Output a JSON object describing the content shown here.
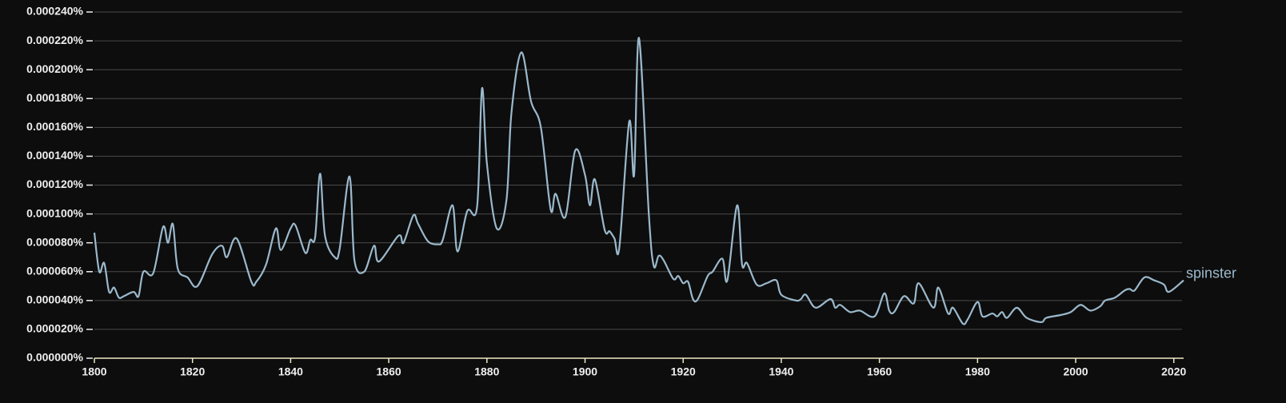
{
  "chart_data": {
    "type": "line",
    "xlim": [
      1800,
      2022
    ],
    "xticks": [
      1800,
      1820,
      1840,
      1860,
      1880,
      1900,
      1920,
      1940,
      1960,
      1980,
      2000,
      2020
    ],
    "ylim": [
      0,
      0.00024
    ],
    "yticks": [
      {
        "value": 0,
        "label": "0.000000%"
      },
      {
        "value": 2e-05,
        "label": "0.000020%"
      },
      {
        "value": 4e-05,
        "label": "0.000040%"
      },
      {
        "value": 6e-05,
        "label": "0.000060%"
      },
      {
        "value": 8e-05,
        "label": "0.000080%"
      },
      {
        "value": 0.0001,
        "label": "0.000100%"
      },
      {
        "value": 0.00012,
        "label": "0.000120%"
      },
      {
        "value": 0.00014,
        "label": "0.000140%"
      },
      {
        "value": 0.00016,
        "label": "0.000160%"
      },
      {
        "value": 0.00018,
        "label": "0.000180%"
      },
      {
        "value": 0.0002,
        "label": "0.000200%"
      },
      {
        "value": 0.00022,
        "label": "0.000220%"
      },
      {
        "value": 0.00024,
        "label": "0.000240%"
      }
    ],
    "grid": true,
    "x": [
      1800,
      1801,
      1802,
      1803,
      1804,
      1805,
      1806,
      1808,
      1809,
      1810,
      1812,
      1814,
      1815,
      1816,
      1817,
      1819,
      1821,
      1824,
      1826,
      1827,
      1829,
      1832,
      1833,
      1835,
      1837,
      1838,
      1840,
      1841,
      1843,
      1844,
      1845,
      1846,
      1847,
      1849,
      1850,
      1852,
      1853,
      1855,
      1857,
      1858,
      1862,
      1863,
      1865,
      1866,
      1868,
      1870,
      1871,
      1873,
      1874,
      1876,
      1878,
      1879,
      1880,
      1882,
      1884,
      1885,
      1887,
      1889,
      1891,
      1893,
      1894,
      1896,
      1898,
      1900,
      1901,
      1902,
      1904,
      1905,
      1906,
      1907,
      1909,
      1910,
      1911,
      1913,
      1914,
      1915,
      1916,
      1918,
      1919,
      1920,
      1921,
      1922,
      1923,
      1925,
      1926,
      1928,
      1929,
      1931,
      1932,
      1933,
      1935,
      1937,
      1939,
      1940,
      1943,
      1944,
      1945,
      1947,
      1950,
      1951,
      1952,
      1954,
      1956,
      1959,
      1961,
      1962,
      1963,
      1965,
      1967,
      1968,
      1971,
      1972,
      1974,
      1975,
      1977,
      1978,
      1980,
      1981,
      1983,
      1984,
      1985,
      1986,
      1988,
      1990,
      1993,
      1994,
      1997,
      1999,
      2001,
      2003,
      2005,
      2006,
      2008,
      2010,
      2011,
      2012,
      2014,
      2016,
      2018,
      2019,
      2022
    ],
    "series": [
      {
        "name": "spinster",
        "color": "#9bb9cc",
        "values": [
          8.7e-05,
          6e-05,
          6.6e-05,
          4.6e-05,
          4.9e-05,
          4.2e-05,
          4.3e-05,
          4.6e-05,
          4.3e-05,
          6e-05,
          5.9e-05,
          9.1e-05,
          8e-05,
          9.3e-05,
          6.2e-05,
          5.6e-05,
          5e-05,
          7.2e-05,
          7.8e-05,
          7e-05,
          8.3e-05,
          5.3e-05,
          5.3e-05,
          6.5e-05,
          9e-05,
          7.5e-05,
          9e-05,
          9.2e-05,
          7.3e-05,
          8.2e-05,
          8.4e-05,
          0.000128,
          8.5e-05,
          7e-05,
          7.6e-05,
          0.000126,
          6.8e-05,
          6e-05,
          7.8e-05,
          6.7e-05,
          8.5e-05,
          8e-05,
          9.9e-05,
          9.3e-05,
          8.1e-05,
          7.9e-05,
          8.2e-05,
          0.000106,
          7.4e-05,
          0.000102,
          0.000105,
          0.000187,
          0.000135,
          9e-05,
          0.00011,
          0.00017,
          0.000212,
          0.000178,
          0.00016,
          0.000103,
          0.000114,
          9.8e-05,
          0.000144,
          0.000127,
          0.000106,
          0.000124,
          8.9e-05,
          8.8e-05,
          8.3e-05,
          7.7e-05,
          0.000164,
          0.000127,
          0.000222,
          0.0001,
          6.4e-05,
          7.1e-05,
          6.8e-05,
          5.5e-05,
          5.7e-05,
          5.2e-05,
          5.3e-05,
          4.1e-05,
          4.1e-05,
          5.7e-05,
          6e-05,
          6.9e-05,
          5.4e-05,
          0.000106,
          6.5e-05,
          6.6e-05,
          5.1e-05,
          5.2e-05,
          5.4e-05,
          4.4e-05,
          4e-05,
          4.1e-05,
          4.4e-05,
          3.5e-05,
          4.1e-05,
          3.5e-05,
          3.7e-05,
          3.2e-05,
          3.3e-05,
          2.9e-05,
          4.5e-05,
          3.3e-05,
          3.2e-05,
          4.3e-05,
          3.8e-05,
          5.2e-05,
          3.5e-05,
          4.9e-05,
          3.1e-05,
          3.5e-05,
          2.4e-05,
          2.7e-05,
          3.9e-05,
          2.9e-05,
          3.1e-05,
          2.9e-05,
          3.2e-05,
          2.8e-05,
          3.5e-05,
          2.8e-05,
          2.5e-05,
          2.8e-05,
          3e-05,
          3.2e-05,
          3.7e-05,
          3.3e-05,
          3.6e-05,
          4e-05,
          4.2e-05,
          4.7e-05,
          4.8e-05,
          4.7e-05,
          5.6e-05,
          5.4e-05,
          5.1e-05,
          4.6e-05,
          5.4e-05
        ]
      }
    ]
  }
}
